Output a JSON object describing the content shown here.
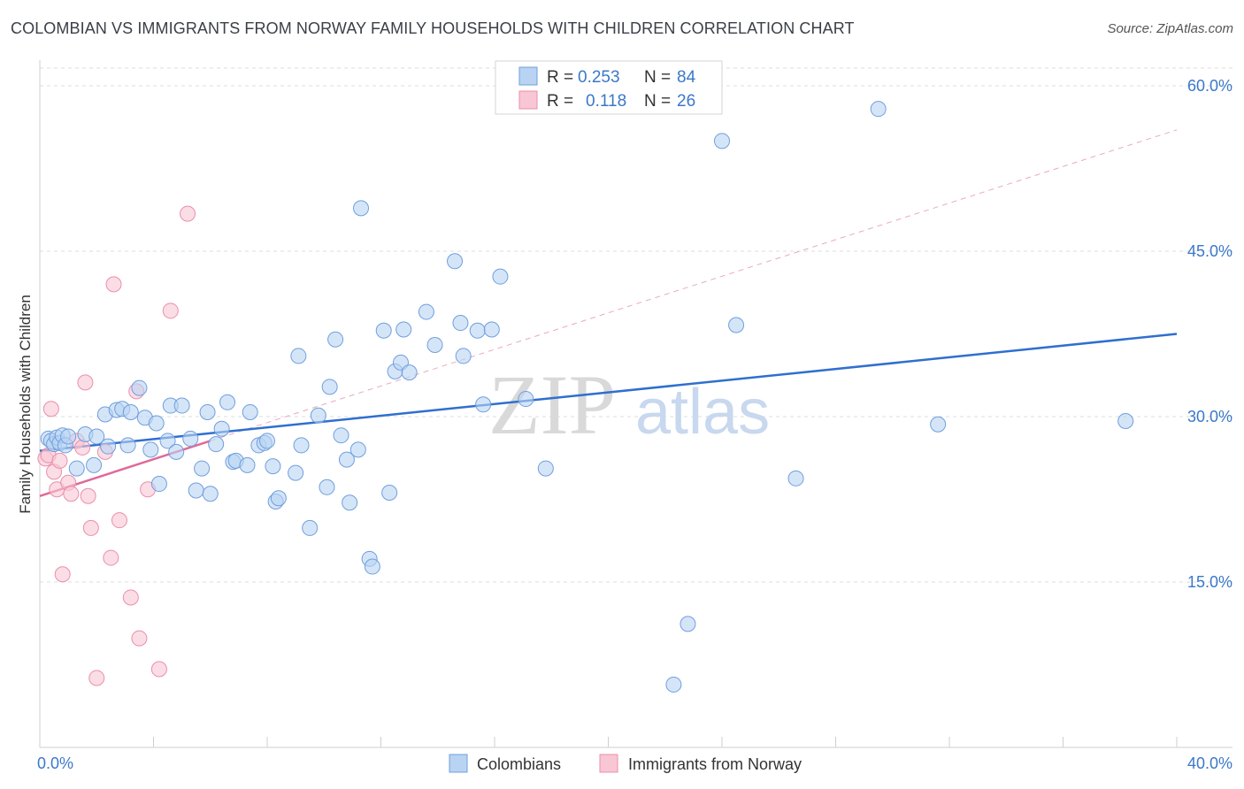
{
  "header": {
    "title": "COLOMBIAN VS IMMIGRANTS FROM NORWAY FAMILY HOUSEHOLDS WITH CHILDREN CORRELATION CHART",
    "source": "Source: ZipAtlas.com"
  },
  "legend": {
    "r_label": "R =",
    "n_label": "N =",
    "series1_r": "0.253",
    "series1_n": "84",
    "series2_r": "0.118",
    "series2_n": "26"
  },
  "watermark": {
    "zip": "ZIP",
    "atlas": "atlas"
  },
  "colors": {
    "blue_fill": "#b9d3f3",
    "blue_stroke": "#6f9fdc",
    "blue_line": "#2f6fcf",
    "pink_fill": "#f9c6d4",
    "pink_stroke": "#ea8fab",
    "pink_line": "#e0699a",
    "grid": "#dddddd",
    "tick_text": "#3a78c9"
  },
  "chart_data": {
    "type": "scatter",
    "title": "COLOMBIAN VS IMMIGRANTS FROM NORWAY FAMILY HOUSEHOLDS WITH CHILDREN CORRELATION CHART",
    "xlabel": "",
    "ylabel": "Family Households with Children",
    "xlim": [
      0,
      40
    ],
    "ylim": [
      0,
      63
    ],
    "x_tick_labels": [
      "0.0%",
      "40.0%"
    ],
    "y_ticks": [
      15,
      30,
      45,
      60
    ],
    "y_tick_labels": [
      "15.0%",
      "30.0%",
      "45.0%",
      "60.0%"
    ],
    "grid": true,
    "legend_position": "top-center",
    "series": [
      {
        "name": "Colombians",
        "r": 0.253,
        "n": 84,
        "trend": {
          "x": [
            0,
            40
          ],
          "y": [
            26.9,
            37.5
          ],
          "style": "solid"
        },
        "points": [
          [
            0.3,
            28.0
          ],
          [
            0.4,
            27.8
          ],
          [
            0.5,
            27.5
          ],
          [
            0.6,
            28.1
          ],
          [
            0.7,
            27.6
          ],
          [
            0.8,
            28.3
          ],
          [
            0.9,
            27.4
          ],
          [
            1.0,
            28.2
          ],
          [
            1.3,
            25.3
          ],
          [
            1.6,
            28.4
          ],
          [
            1.9,
            25.6
          ],
          [
            2.0,
            28.2
          ],
          [
            2.4,
            27.3
          ],
          [
            2.3,
            30.2
          ],
          [
            2.7,
            30.6
          ],
          [
            2.9,
            30.7
          ],
          [
            3.1,
            27.4
          ],
          [
            3.2,
            30.4
          ],
          [
            3.5,
            32.6
          ],
          [
            3.7,
            29.9
          ],
          [
            3.9,
            27.0
          ],
          [
            4.1,
            29.4
          ],
          [
            4.2,
            23.9
          ],
          [
            4.5,
            27.8
          ],
          [
            4.6,
            31.0
          ],
          [
            4.8,
            26.8
          ],
          [
            5.0,
            31.0
          ],
          [
            5.3,
            28.0
          ],
          [
            5.5,
            23.3
          ],
          [
            5.7,
            25.3
          ],
          [
            5.9,
            30.4
          ],
          [
            6.0,
            23.0
          ],
          [
            6.2,
            27.5
          ],
          [
            6.4,
            28.9
          ],
          [
            6.6,
            31.3
          ],
          [
            6.8,
            25.9
          ],
          [
            6.9,
            26.0
          ],
          [
            7.3,
            25.6
          ],
          [
            7.4,
            30.4
          ],
          [
            7.7,
            27.4
          ],
          [
            7.9,
            27.6
          ],
          [
            8.0,
            27.8
          ],
          [
            8.2,
            25.5
          ],
          [
            8.3,
            22.3
          ],
          [
            8.4,
            22.6
          ],
          [
            9.0,
            24.9
          ],
          [
            9.1,
            35.5
          ],
          [
            9.2,
            27.4
          ],
          [
            9.5,
            19.9
          ],
          [
            9.8,
            30.1
          ],
          [
            10.1,
            23.6
          ],
          [
            10.2,
            32.7
          ],
          [
            10.4,
            37.0
          ],
          [
            10.6,
            28.3
          ],
          [
            10.8,
            26.1
          ],
          [
            10.9,
            22.2
          ],
          [
            11.2,
            27.0
          ],
          [
            11.3,
            48.9
          ],
          [
            11.6,
            17.1
          ],
          [
            11.7,
            16.4
          ],
          [
            12.1,
            37.8
          ],
          [
            12.3,
            23.1
          ],
          [
            12.5,
            34.1
          ],
          [
            12.7,
            34.9
          ],
          [
            12.8,
            37.9
          ],
          [
            13.0,
            34.0
          ],
          [
            13.6,
            39.5
          ],
          [
            13.9,
            36.5
          ],
          [
            14.6,
            44.1
          ],
          [
            14.8,
            38.5
          ],
          [
            14.9,
            35.5
          ],
          [
            15.4,
            37.8
          ],
          [
            15.6,
            31.1
          ],
          [
            15.9,
            37.9
          ],
          [
            16.2,
            42.7
          ],
          [
            17.1,
            31.6
          ],
          [
            17.8,
            25.3
          ],
          [
            22.3,
            5.7
          ],
          [
            22.8,
            11.2
          ],
          [
            24.0,
            55.0
          ],
          [
            24.5,
            38.3
          ],
          [
            26.6,
            24.4
          ],
          [
            29.5,
            57.9
          ],
          [
            31.6,
            29.3
          ],
          [
            38.2,
            29.6
          ]
        ]
      },
      {
        "name": "Immigrants from Norway",
        "r": 0.118,
        "n": 26,
        "trend": {
          "x": [
            0,
            6.0
          ],
          "y": [
            22.8,
            27.8
          ],
          "style": "solid",
          "extended_x": [
            6.0,
            40
          ],
          "extended_y": [
            27.8,
            56.0
          ],
          "extended_style": "dashed"
        },
        "points": [
          [
            0.2,
            26.2
          ],
          [
            0.3,
            26.5
          ],
          [
            0.4,
            30.7
          ],
          [
            0.5,
            25.0
          ],
          [
            0.6,
            23.4
          ],
          [
            0.7,
            26.0
          ],
          [
            0.8,
            15.7
          ],
          [
            1.0,
            24.0
          ],
          [
            1.1,
            23.0
          ],
          [
            1.3,
            27.8
          ],
          [
            1.5,
            27.2
          ],
          [
            1.6,
            33.1
          ],
          [
            1.7,
            22.8
          ],
          [
            1.8,
            19.9
          ],
          [
            2.0,
            6.3
          ],
          [
            2.3,
            26.8
          ],
          [
            2.5,
            17.2
          ],
          [
            2.6,
            42.0
          ],
          [
            2.8,
            20.6
          ],
          [
            3.2,
            13.6
          ],
          [
            3.4,
            32.3
          ],
          [
            3.5,
            9.9
          ],
          [
            3.8,
            23.4
          ],
          [
            4.2,
            7.1
          ],
          [
            4.6,
            39.6
          ],
          [
            5.2,
            48.4
          ]
        ]
      }
    ]
  },
  "bottom_legend": {
    "series1": "Colombians",
    "series2": "Immigrants from Norway"
  }
}
